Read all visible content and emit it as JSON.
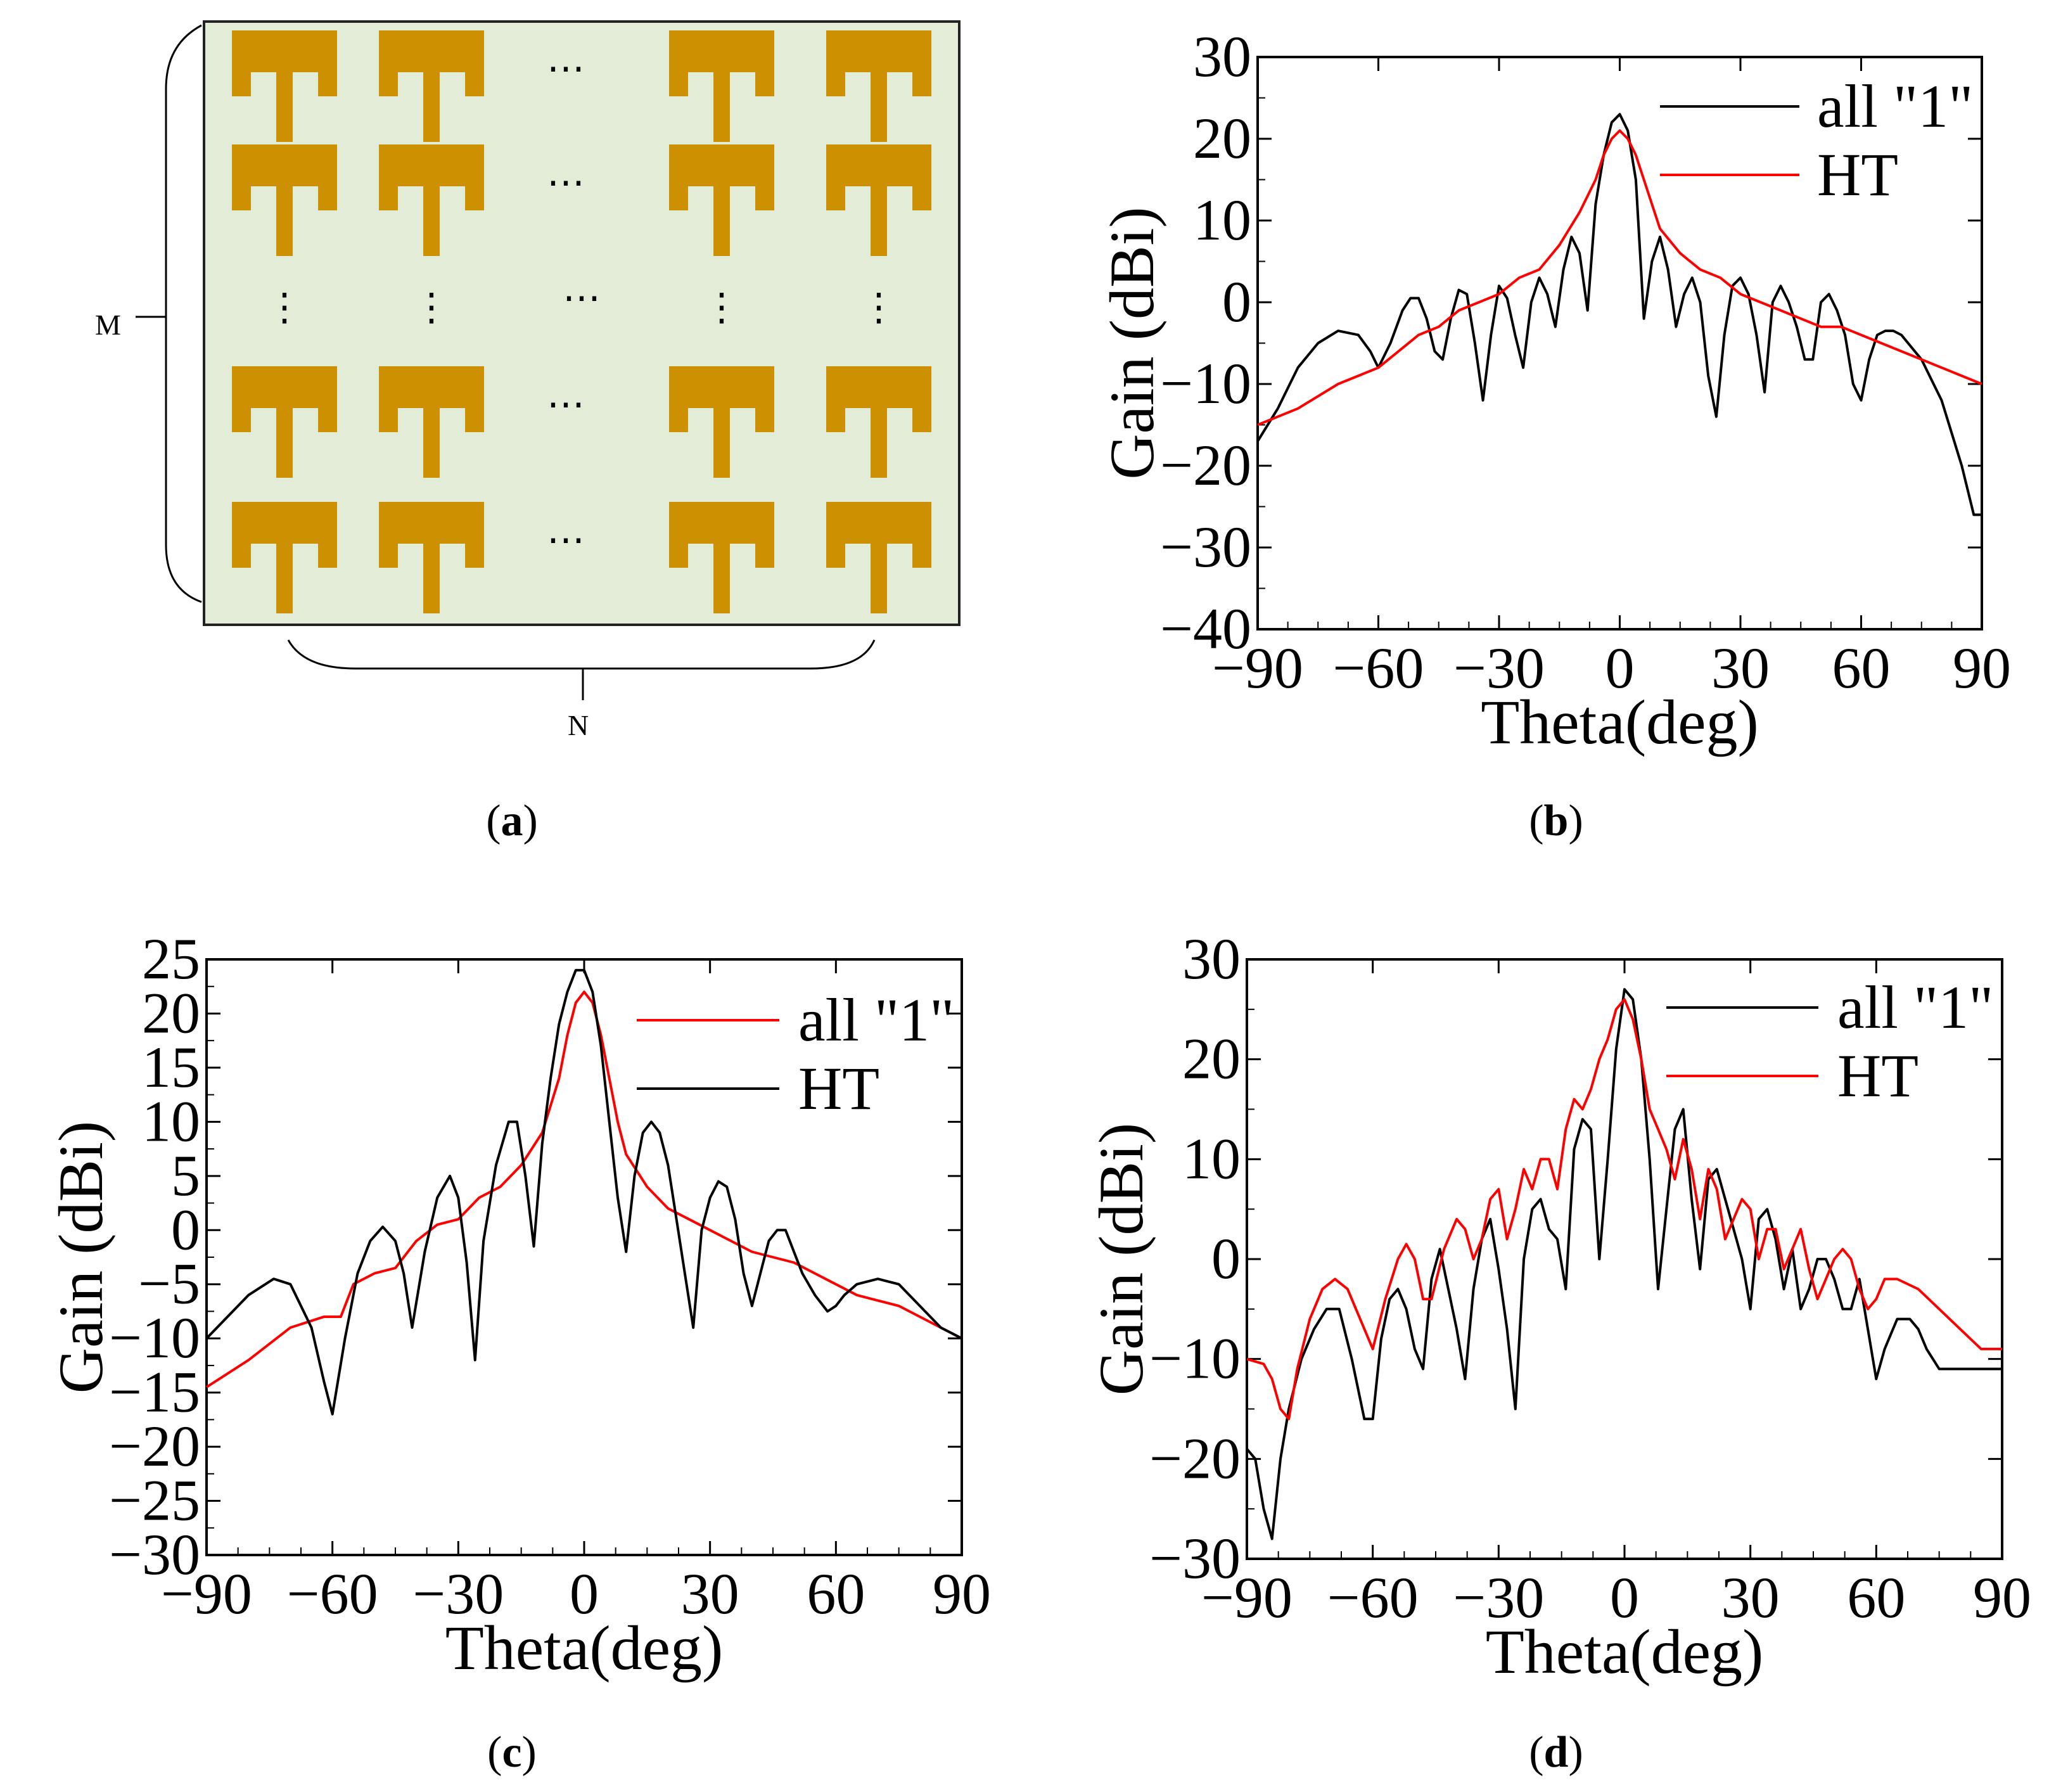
{
  "panels": {
    "a": {
      "label_open": "(",
      "label_letter": "a",
      "label_close": ")",
      "row_label": "M",
      "col_label": "N",
      "rows": 5,
      "cols": 5,
      "ellipsis_h": "⋯",
      "ellipsis_v": "⋮",
      "colors": {
        "substrate": "#e3ecd6",
        "patch": "#cc9000",
        "border": "#222222"
      }
    },
    "b": {
      "label_open": "(",
      "label_letter": "b",
      "label_close": ")"
    },
    "c": {
      "label_open": "(",
      "label_letter": "c",
      "label_close": ")"
    },
    "d": {
      "label_open": "(",
      "label_letter": "d",
      "label_close": ")"
    }
  },
  "chart_data": [
    {
      "id": "b",
      "type": "line",
      "xlabel": "Theta(deg)",
      "ylabel": "Gain (dBi)",
      "xlim": [
        -90,
        90
      ],
      "ylim": [
        -40,
        30
      ],
      "xticks": [
        -90,
        -60,
        -30,
        0,
        30,
        60,
        90
      ],
      "yticks": [
        -40,
        -30,
        -20,
        -10,
        0,
        10,
        20,
        30
      ],
      "legend_position": "top-right",
      "series": [
        {
          "name": "all \"1\"",
          "color": "#000000",
          "x": [
            -90,
            -85,
            -80,
            -75,
            -70,
            -65,
            -62,
            -60,
            -57,
            -54,
            -52,
            -50,
            -48,
            -46,
            -44,
            -42,
            -40,
            -38,
            -36,
            -34,
            -32,
            -30,
            -28,
            -26,
            -24,
            -22,
            -20,
            -18,
            -16,
            -14,
            -12,
            -10,
            -8,
            -6,
            -4,
            -2,
            0,
            2,
            4,
            6,
            8,
            10,
            12,
            14,
            16,
            18,
            20,
            22,
            24,
            26,
            28,
            30,
            32,
            34,
            36,
            38,
            40,
            42,
            44,
            46,
            48,
            50,
            52,
            54,
            56,
            58,
            60,
            62,
            64,
            66,
            68,
            70,
            75,
            80,
            85,
            88,
            90
          ],
          "y": [
            -17,
            -13,
            -8,
            -5,
            -3.5,
            -4,
            -6,
            -8,
            -5,
            -1,
            0.5,
            0.5,
            -2,
            -6,
            -7,
            -2,
            1.5,
            1,
            -5,
            -12,
            -4,
            2,
            0.5,
            -4,
            -8,
            0,
            3,
            1,
            -3,
            4,
            8,
            6,
            -1,
            12,
            18,
            22,
            23,
            21,
            15,
            -2,
            5,
            8,
            4,
            -3,
            1,
            3,
            0,
            -9,
            -14,
            -4,
            2,
            3,
            1,
            -4,
            -11,
            0,
            2,
            0,
            -3,
            -7,
            -7,
            0,
            1,
            -1,
            -4,
            -10,
            -12,
            -7,
            -4,
            -3.5,
            -3.5,
            -4,
            -7,
            -12,
            -20,
            -26,
            -26
          ]
        },
        {
          "name": "HT",
          "color": "#ff0000",
          "x": [
            -90,
            -80,
            -70,
            -65,
            -60,
            -55,
            -50,
            -45,
            -40,
            -35,
            -30,
            -25,
            -20,
            -15,
            -10,
            -6,
            -4,
            -2,
            0,
            2,
            4,
            6,
            8,
            10,
            15,
            20,
            25,
            30,
            35,
            40,
            45,
            50,
            55,
            60,
            65,
            70,
            75,
            80,
            85,
            90
          ],
          "y": [
            -15,
            -13,
            -10,
            -9,
            -8,
            -6,
            -4,
            -3,
            -1,
            0,
            1,
            3,
            4,
            7,
            11,
            15,
            18,
            20,
            21,
            20,
            18,
            15,
            12,
            9,
            6,
            4,
            3,
            1,
            0,
            -1,
            -2,
            -3,
            -3,
            -4,
            -5,
            -6,
            -7,
            -8,
            -9,
            -10
          ]
        }
      ]
    },
    {
      "id": "c",
      "type": "line",
      "xlabel": "Theta(deg)",
      "ylabel": "Gain (dBi)",
      "xlim": [
        -90,
        90
      ],
      "ylim": [
        -30,
        25
      ],
      "xticks": [
        -90,
        -60,
        -30,
        0,
        30,
        60,
        90
      ],
      "yticks": [
        -30,
        -25,
        -20,
        -15,
        -10,
        -5,
        0,
        5,
        10,
        15,
        20,
        25
      ],
      "legend_position": "top-right",
      "series": [
        {
          "name": "all \"1\"",
          "color": "#ff0000",
          "x": [
            -90,
            -80,
            -70,
            -62,
            -58,
            -55,
            -50,
            -45,
            -40,
            -35,
            -30,
            -25,
            -20,
            -15,
            -10,
            -6,
            -4,
            -2,
            0,
            2,
            4,
            6,
            8,
            10,
            15,
            20,
            25,
            30,
            35,
            40,
            45,
            50,
            55,
            60,
            65,
            70,
            75,
            80,
            85,
            90
          ],
          "y": [
            -14.5,
            -12,
            -9,
            -8,
            -8,
            -5,
            -4,
            -3.5,
            -1,
            0.5,
            1,
            3,
            4,
            6,
            9,
            14,
            18,
            21,
            22,
            21,
            18,
            14,
            10,
            7,
            4,
            2,
            1,
            0,
            -1,
            -2,
            -2.5,
            -3,
            -4,
            -5,
            -6,
            -6.5,
            -7,
            -8,
            -9,
            -10
          ]
        },
        {
          "name": "HT",
          "color": "#000000",
          "x": [
            -90,
            -80,
            -74,
            -70,
            -65,
            -62,
            -60,
            -57,
            -54,
            -51,
            -48,
            -45,
            -43,
            -41,
            -38,
            -35,
            -32,
            -30,
            -28,
            -26,
            -24,
            -21,
            -18,
            -16,
            -14,
            -12,
            -10,
            -8,
            -6,
            -4,
            -2,
            0,
            2,
            4,
            6,
            8,
            10,
            12,
            14,
            16,
            18,
            20,
            22,
            24,
            26,
            28,
            30,
            32,
            34,
            36,
            38,
            40,
            42,
            44,
            46,
            48,
            50,
            52,
            55,
            58,
            60,
            62,
            65,
            70,
            75,
            80,
            85,
            90
          ],
          "y": [
            -10,
            -6,
            -4.5,
            -5,
            -9,
            -14,
            -17,
            -10,
            -4,
            -1,
            0.3,
            -1,
            -4,
            -9,
            -2,
            3,
            5,
            3,
            -3,
            -12,
            -1,
            6,
            10,
            10,
            5,
            -1.5,
            8,
            14,
            19,
            22,
            24,
            24,
            22,
            17,
            10,
            3,
            -2,
            5,
            9,
            10,
            9,
            6,
            1,
            -4,
            -9,
            0,
            3,
            4.5,
            4,
            1,
            -4,
            -7,
            -4,
            -1,
            0,
            0,
            -2,
            -4,
            -6,
            -7.5,
            -7,
            -6,
            -5,
            -4.5,
            -5,
            -7,
            -9,
            -10
          ]
        }
      ]
    },
    {
      "id": "d",
      "type": "line",
      "xlabel": "Theta(deg)",
      "ylabel": "Gain (dBi)",
      "xlim": [
        -90,
        90
      ],
      "ylim": [
        -30,
        30
      ],
      "xticks": [
        -90,
        -60,
        -30,
        0,
        30,
        60,
        90
      ],
      "yticks": [
        -30,
        -20,
        -10,
        0,
        10,
        20,
        30
      ],
      "legend_position": "top-right",
      "series": [
        {
          "name": "all \"1\"",
          "color": "#000000",
          "x": [
            -90,
            -88,
            -86,
            -84,
            -82,
            -80,
            -77,
            -74,
            -71,
            -68,
            -65,
            -62,
            -60,
            -58,
            -56,
            -54,
            -52,
            -50,
            -48,
            -46,
            -44,
            -42,
            -40,
            -38,
            -36,
            -34,
            -32,
            -30,
            -28,
            -26,
            -24,
            -22,
            -20,
            -18,
            -16,
            -14,
            -12,
            -10,
            -8,
            -6,
            -4,
            -2,
            0,
            2,
            4,
            6,
            8,
            10,
            12,
            14,
            16,
            18,
            20,
            22,
            24,
            26,
            28,
            30,
            32,
            34,
            36,
            38,
            40,
            42,
            44,
            46,
            48,
            50,
            52,
            54,
            56,
            58,
            60,
            62,
            65,
            68,
            70,
            72,
            75,
            80,
            85,
            88,
            90
          ],
          "y": [
            -19,
            -20,
            -25,
            -28,
            -20,
            -15,
            -10,
            -7,
            -5,
            -5,
            -10,
            -16,
            -16,
            -8,
            -4,
            -3,
            -5,
            -9,
            -11,
            -2,
            1,
            -3,
            -7,
            -12,
            -3,
            2,
            4,
            -1,
            -7,
            -15,
            0,
            5,
            6,
            3,
            2,
            -3,
            11,
            14,
            13,
            0,
            10,
            21,
            27,
            26,
            20,
            10,
            -3,
            5,
            13,
            15,
            6,
            -1,
            8,
            9,
            6,
            3,
            0,
            -5,
            4,
            5,
            2,
            -3,
            1,
            -5,
            -3,
            0,
            0,
            -2,
            -5,
            -5,
            -2,
            -7,
            -12,
            -9,
            -6,
            -6,
            -7,
            -9,
            -11,
            -11,
            -11,
            -11,
            -11
          ]
        },
        {
          "name": "HT",
          "color": "#ff0000",
          "x": [
            -90,
            -86,
            -84,
            -82,
            -80,
            -78,
            -75,
            -72,
            -69,
            -66,
            -63,
            -60,
            -57,
            -54,
            -52,
            -50,
            -48,
            -46,
            -43,
            -40,
            -38,
            -36,
            -34,
            -32,
            -30,
            -28,
            -26,
            -24,
            -22,
            -20,
            -18,
            -16,
            -14,
            -12,
            -10,
            -8,
            -6,
            -4,
            -2,
            0,
            2,
            4,
            6,
            8,
            10,
            12,
            14,
            16,
            18,
            20,
            22,
            24,
            26,
            28,
            30,
            32,
            34,
            36,
            38,
            40,
            42,
            44,
            46,
            48,
            50,
            52,
            54,
            56,
            58,
            60,
            62,
            65,
            70,
            75,
            80,
            85,
            90
          ],
          "y": [
            -10,
            -10.5,
            -12,
            -15,
            -16,
            -11,
            -6,
            -3,
            -2,
            -3,
            -6,
            -9,
            -4,
            0,
            1.5,
            0,
            -4,
            -4,
            1,
            4,
            3,
            0,
            2,
            6,
            7,
            2,
            5,
            9,
            7,
            10,
            10,
            7,
            13,
            16,
            15,
            17,
            20,
            22,
            25,
            26,
            24,
            20,
            15,
            13,
            11,
            8,
            12,
            9,
            4,
            9,
            7,
            2,
            4,
            6,
            5,
            0,
            3,
            3,
            -1,
            1,
            3,
            -1,
            -4,
            -2,
            0,
            1,
            0,
            -3,
            -5,
            -4,
            -2,
            -2,
            -3,
            -5,
            -7,
            -9,
            -9
          ]
        }
      ]
    }
  ]
}
